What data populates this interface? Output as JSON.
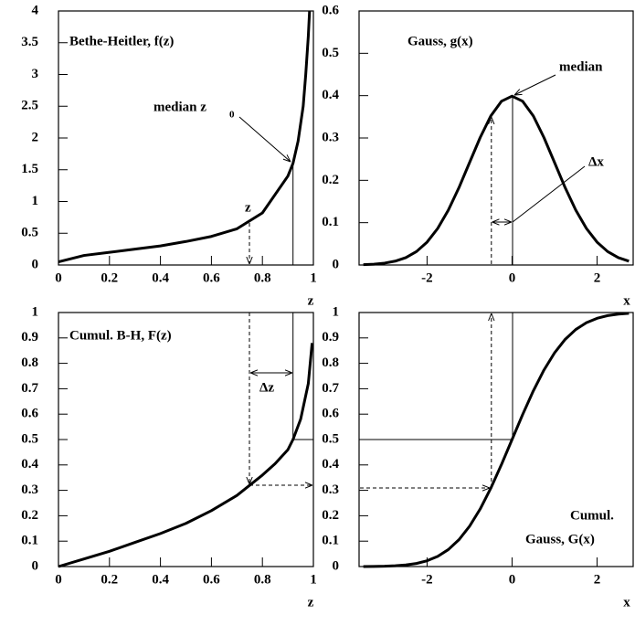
{
  "chart_data": [
    {
      "type": "line",
      "title": "Bethe-Heitler,  f(z)",
      "xlabel": "z",
      "x": [
        0,
        0.1,
        0.2,
        0.3,
        0.4,
        0.5,
        0.6,
        0.7,
        0.8,
        0.9,
        0.92,
        0.94,
        0.96,
        0.97,
        0.98,
        0.985
      ],
      "values": [
        0.05,
        0.15,
        0.2,
        0.25,
        0.3,
        0.37,
        0.45,
        0.57,
        0.82,
        1.4,
        1.6,
        1.95,
        2.5,
        3.0,
        3.6,
        4.0
      ],
      "color": "#000000",
      "xlim": [
        0,
        1
      ],
      "ylim": [
        0,
        4
      ],
      "xticks": [
        0,
        0.2,
        0.4,
        0.6,
        0.8,
        1
      ],
      "yticks": [
        0,
        0.5,
        1,
        1.5,
        2,
        2.5,
        3,
        3.5,
        4
      ],
      "annotations": [
        {
          "text": "median z",
          "sub": "0"
        },
        {
          "text": "z"
        }
      ]
    },
    {
      "type": "line",
      "title": "Gauss,  g(x)",
      "xlabel": "x",
      "x": [
        -3.5,
        -3.25,
        -3,
        -2.75,
        -2.5,
        -2.25,
        -2,
        -1.75,
        -1.5,
        -1.25,
        -1,
        -0.75,
        -0.5,
        -0.25,
        0,
        0.25,
        0.5,
        0.75,
        1,
        1.25,
        1.5,
        1.75,
        2,
        2.25,
        2.5,
        2.75
      ],
      "values": [
        0.0009,
        0.002,
        0.0044,
        0.0091,
        0.0175,
        0.0317,
        0.054,
        0.0863,
        0.1295,
        0.1826,
        0.242,
        0.3011,
        0.3521,
        0.3867,
        0.3989,
        0.3867,
        0.3521,
        0.3011,
        0.242,
        0.1826,
        0.1295,
        0.0863,
        0.054,
        0.0317,
        0.0175,
        0.0091
      ],
      "color": "#000000",
      "xlim": [
        -3.6,
        2.85
      ],
      "ylim": [
        0,
        0.6
      ],
      "xticks": [
        -2,
        0,
        2
      ],
      "yticks": [
        0,
        0.1,
        0.2,
        0.3,
        0.4,
        0.5,
        0.6
      ],
      "annotations": [
        {
          "text": "median"
        },
        {
          "text": "Δx"
        }
      ]
    },
    {
      "type": "line",
      "title": "Cumul. B-H,  F(z)",
      "xlabel": "z",
      "x": [
        0,
        0.1,
        0.2,
        0.3,
        0.4,
        0.5,
        0.6,
        0.7,
        0.75,
        0.8,
        0.85,
        0.9,
        0.92,
        0.95,
        0.98,
        0.995
      ],
      "values": [
        0,
        0.03,
        0.06,
        0.095,
        0.13,
        0.17,
        0.22,
        0.28,
        0.32,
        0.36,
        0.405,
        0.46,
        0.5,
        0.58,
        0.72,
        0.88
      ],
      "color": "#000000",
      "xlim": [
        0,
        1
      ],
      "ylim": [
        0,
        1
      ],
      "xticks": [
        0,
        0.2,
        0.4,
        0.6,
        0.8,
        1
      ],
      "yticks": [
        0,
        0.1,
        0.2,
        0.3,
        0.4,
        0.5,
        0.6,
        0.7,
        0.8,
        0.9,
        1
      ],
      "annotations": [
        {
          "text": "Δz"
        }
      ]
    },
    {
      "type": "line",
      "title_lines": [
        "Cumul.",
        "Gauss,  G(x)"
      ],
      "xlabel": "x",
      "x": [
        -3.5,
        -3.25,
        -3,
        -2.75,
        -2.5,
        -2.25,
        -2,
        -1.75,
        -1.5,
        -1.25,
        -1,
        -0.75,
        -0.5,
        -0.25,
        0,
        0.25,
        0.5,
        0.75,
        1,
        1.25,
        1.5,
        1.75,
        2,
        2.25,
        2.5,
        2.75
      ],
      "values": [
        0.0002,
        0.0006,
        0.0013,
        0.003,
        0.0062,
        0.0122,
        0.0228,
        0.0401,
        0.0668,
        0.1056,
        0.1587,
        0.2266,
        0.3085,
        0.4013,
        0.5,
        0.5987,
        0.6915,
        0.7734,
        0.8413,
        0.8944,
        0.9332,
        0.9599,
        0.9772,
        0.9878,
        0.9938,
        0.997
      ],
      "color": "#000000",
      "xlim": [
        -3.6,
        2.85
      ],
      "ylim": [
        0,
        1
      ],
      "xticks": [
        -2,
        0,
        2
      ],
      "yticks": [
        0,
        0.1,
        0.2,
        0.3,
        0.4,
        0.5,
        0.6,
        0.7,
        0.8,
        0.9,
        1
      ]
    }
  ]
}
